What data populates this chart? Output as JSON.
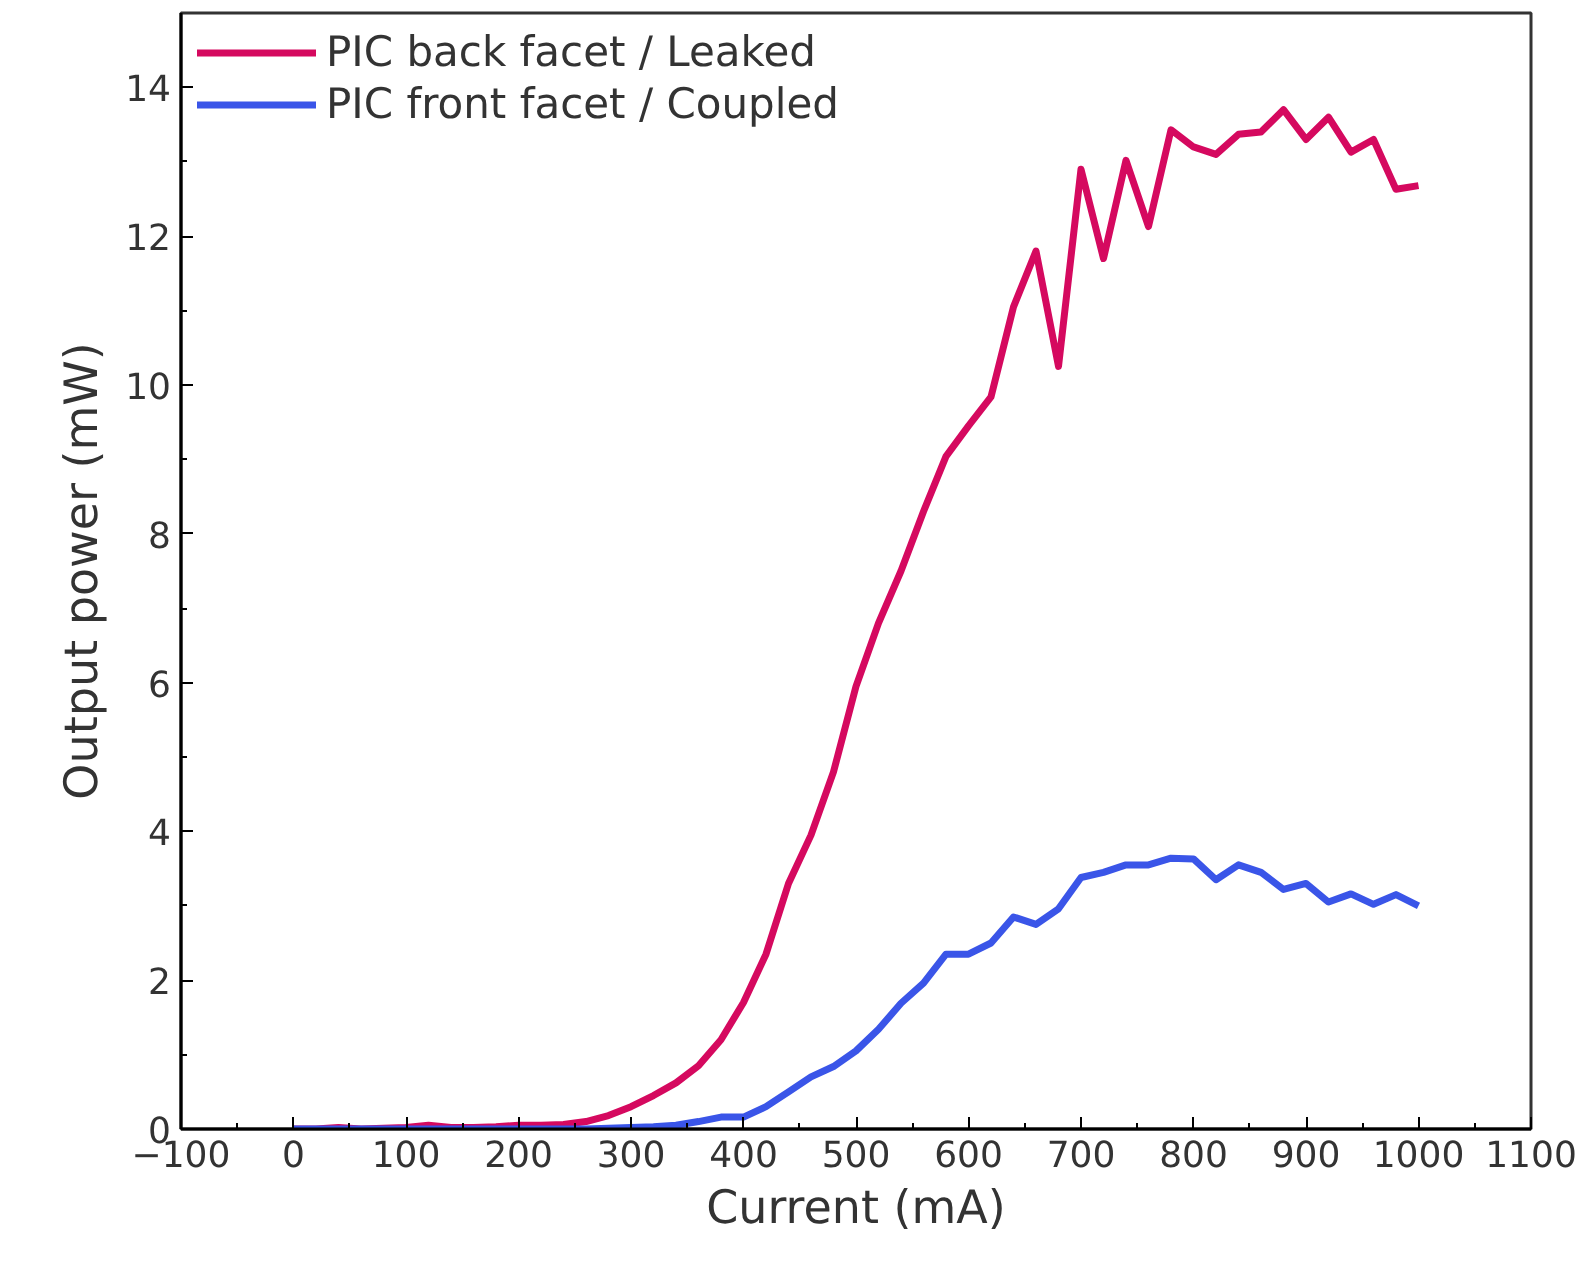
{
  "chart_data": {
    "type": "line",
    "xlabel": "Current (mA)",
    "ylabel": "Output power (mW)",
    "x": [
      0,
      20,
      40,
      60,
      80,
      100,
      120,
      140,
      160,
      180,
      200,
      220,
      240,
      260,
      280,
      300,
      320,
      340,
      360,
      380,
      400,
      420,
      440,
      460,
      480,
      500,
      520,
      540,
      560,
      580,
      600,
      620,
      640,
      660,
      680,
      700,
      720,
      740,
      760,
      780,
      800,
      820,
      840,
      860,
      880,
      900,
      920,
      940,
      960,
      980,
      1000
    ],
    "series": [
      {
        "name": "PIC back facet / Leaked",
        "color": "#d5095f",
        "values": [
          0,
          0,
          0.02,
          0,
          0.01,
          0.02,
          0.05,
          0.02,
          0.02,
          0.03,
          0.05,
          0.05,
          0.06,
          0.1,
          0.18,
          0.3,
          0.45,
          0.62,
          0.85,
          1.2,
          1.7,
          2.35,
          3.3,
          3.95,
          4.8,
          5.95,
          6.8,
          7.5,
          8.3,
          9.04,
          9.45,
          9.84,
          11.05,
          11.8,
          10.25,
          12.9,
          11.7,
          13.02,
          12.13,
          13.43,
          13.2,
          13.1,
          13.37,
          13.4,
          13.7,
          13.3,
          13.6,
          13.13,
          13.3,
          12.63,
          12.68
        ]
      },
      {
        "name": "PIC front facet / Coupled",
        "color": "#3a55e8",
        "values": [
          0,
          0,
          0,
          0,
          0,
          0,
          0,
          0,
          0,
          0,
          0,
          0,
          0,
          0,
          0.01,
          0.02,
          0.03,
          0.05,
          0.1,
          0.16,
          0.16,
          0.3,
          0.5,
          0.7,
          0.84,
          1.05,
          1.34,
          1.69,
          1.96,
          2.35,
          2.35,
          2.5,
          2.85,
          2.75,
          2.96,
          3.38,
          3.45,
          3.55,
          3.55,
          3.64,
          3.63,
          3.35,
          3.55,
          3.45,
          3.22,
          3.3,
          3.05,
          3.16,
          3.02,
          3.15,
          3.0
        ]
      }
    ],
    "xlim": [
      -100,
      1100
    ],
    "xticks": [
      -100,
      0,
      100,
      200,
      300,
      400,
      500,
      600,
      700,
      800,
      900,
      1000,
      1100
    ],
    "ylim": [
      0,
      15
    ],
    "yticks": [
      0,
      2,
      4,
      6,
      8,
      10,
      12,
      14
    ],
    "grid": false,
    "legend": "top left",
    "marker": "none",
    "line_style": "solid"
  }
}
